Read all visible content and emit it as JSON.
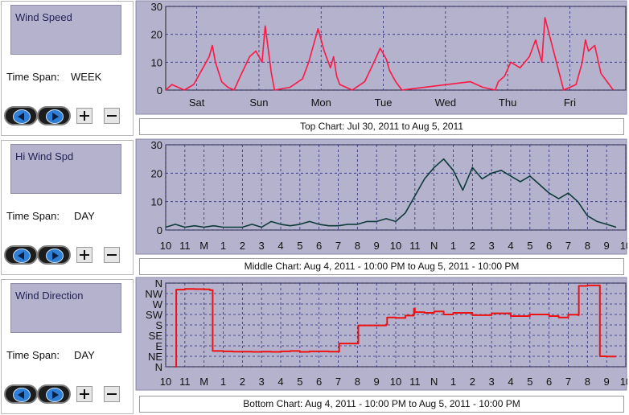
{
  "panels": [
    {
      "selector_label": "Wind Speed",
      "time_span_label": "Time Span:",
      "time_span_value": "WEEK"
    },
    {
      "selector_label": "Hi Wind Spd",
      "time_span_label": "Time Span:",
      "time_span_value": "DAY"
    },
    {
      "selector_label": "Wind Direction",
      "time_span_label": "Time Span:",
      "time_span_value": "DAY"
    }
  ],
  "captions": {
    "top": "Top Chart:  Jul 30, 2011  to  Aug 5, 2011",
    "middle": "Middle Chart:  Aug 4, 2011 - 10:00 PM  to  Aug 5, 2011 - 10:00 PM",
    "bottom": "Bottom Chart:  Aug 4, 2011 - 10:00 PM  to  Aug 5, 2011 - 10:00 PM"
  },
  "colors": {
    "plot_bg": "#b4b2cc",
    "grid": "#2c2c7a",
    "top_series": "#ff1744",
    "middle_series": "#0d3b3b",
    "bottom_series": "#ee1111"
  },
  "icons": {
    "back": "left-arrow-icon",
    "forward": "right-arrow-icon",
    "zoom_in": "plus-icon",
    "zoom_out": "minus-icon"
  },
  "chart_data": [
    {
      "type": "line",
      "ylim": [
        0,
        30
      ],
      "yticks": [
        0,
        10,
        20,
        30
      ],
      "xlim": [
        0,
        7.4
      ],
      "xtick_labels": [
        "Sat",
        "Sun",
        "Mon",
        "Tue",
        "Wed",
        "Thu",
        "Fri"
      ],
      "xtick_positions": [
        0.5,
        1.5,
        2.5,
        3.5,
        4.5,
        5.5,
        6.5
      ],
      "grid": true,
      "series": [
        {
          "x": [
            0,
            0.1,
            0.3,
            0.45,
            0.6,
            0.7,
            0.75,
            0.8,
            0.9,
            1.0,
            1.1,
            1.2,
            1.35,
            1.45,
            1.55,
            1.6,
            1.7,
            1.75,
            2.0,
            2.2,
            2.3,
            2.45,
            2.55,
            2.65,
            2.7,
            2.75,
            2.8,
            2.9,
            3.0,
            3.2,
            3.35,
            3.45,
            3.55,
            3.6,
            3.7,
            3.8,
            4.9,
            5.1,
            5.3,
            5.35,
            5.45,
            5.55,
            5.7,
            5.85,
            5.95,
            6.05,
            6.1,
            6.4,
            6.6,
            6.7,
            6.75,
            6.8,
            6.9,
            7.0,
            7.1,
            7.2
          ],
          "y": [
            0,
            2,
            0,
            2,
            8,
            12,
            16,
            10,
            3,
            1,
            0,
            5,
            12,
            14,
            10,
            23,
            6,
            0,
            1,
            4,
            10,
            22,
            14,
            8,
            12,
            5,
            2,
            1,
            0,
            3,
            10,
            15,
            11,
            7,
            3,
            0,
            3,
            1,
            0,
            3,
            5,
            10,
            8,
            12,
            18,
            10,
            26,
            0,
            2,
            10,
            18,
            14,
            16,
            6,
            3,
            0
          ]
        }
      ]
    },
    {
      "type": "line",
      "ylim": [
        0,
        30
      ],
      "yticks": [
        0,
        10,
        20,
        30
      ],
      "xlim": [
        0,
        24
      ],
      "xtick_labels": [
        "10",
        "11",
        "M",
        "1",
        "2",
        "3",
        "4",
        "5",
        "6",
        "7",
        "8",
        "9",
        "10",
        "11",
        "N",
        "1",
        "2",
        "3",
        "4",
        "5",
        "6",
        "7",
        "8",
        "9",
        "10"
      ],
      "xtick_positions": [
        0,
        1,
        2,
        3,
        4,
        5,
        6,
        7,
        8,
        9,
        10,
        11,
        12,
        13,
        14,
        15,
        16,
        17,
        18,
        19,
        20,
        21,
        22,
        23,
        24
      ],
      "grid": true,
      "series": [
        {
          "x": [
            0,
            0.5,
            1,
            1.5,
            2,
            2.5,
            3,
            3.5,
            4,
            4.5,
            5,
            5.5,
            6,
            6.5,
            7,
            7.5,
            8,
            8.5,
            9,
            9.5,
            10,
            10.5,
            11,
            11.5,
            12,
            12.5,
            13,
            13.5,
            14,
            14.5,
            15,
            15.5,
            16,
            16.5,
            17,
            17.5,
            18,
            18.5,
            19,
            19.5,
            20,
            20.5,
            21,
            21.5,
            22,
            22.5,
            23,
            23.5
          ],
          "y": [
            1,
            2,
            1,
            1.5,
            1,
            1.5,
            1,
            1,
            1,
            2,
            1,
            3,
            2,
            1.5,
            2,
            3,
            2,
            1.5,
            1.5,
            2,
            2,
            3,
            3,
            4,
            3,
            6,
            12,
            18,
            22,
            25,
            21,
            14,
            22,
            18,
            20,
            21,
            19,
            17,
            19,
            16,
            13,
            11,
            13,
            10,
            5,
            3,
            2,
            1
          ]
        }
      ]
    },
    {
      "type": "line",
      "ylim": [
        0,
        360
      ],
      "yticks": [
        0,
        45,
        90,
        135,
        180,
        225,
        270,
        315,
        360
      ],
      "ytick_labels": [
        "N",
        "NE",
        "E",
        "SE",
        "S",
        "SW",
        "W",
        "NW",
        "N"
      ],
      "xlim": [
        0,
        24
      ],
      "xtick_labels": [
        "10",
        "11",
        "M",
        "1",
        "2",
        "3",
        "4",
        "5",
        "6",
        "7",
        "8",
        "9",
        "10",
        "11",
        "N",
        "1",
        "2",
        "3",
        "4",
        "5",
        "6",
        "7",
        "8",
        "9",
        "10"
      ],
      "xtick_positions": [
        0,
        1,
        2,
        3,
        4,
        5,
        6,
        7,
        8,
        9,
        10,
        11,
        12,
        13,
        14,
        15,
        16,
        17,
        18,
        19,
        20,
        21,
        22,
        23,
        24
      ],
      "grid": true,
      "series": [
        {
          "x": [
            0.5,
            0.55,
            1,
            1.5,
            2,
            2.3,
            2.45,
            3,
            3.5,
            4,
            4.5,
            5,
            5.5,
            6,
            6.5,
            7,
            7.5,
            8,
            8.5,
            9,
            9.05,
            9.5,
            10,
            10.05,
            11,
            11.5,
            11.55,
            12,
            12.5,
            12.95,
            13.0,
            13.5,
            14,
            14.5,
            15,
            16,
            17,
            18,
            19,
            20,
            20.5,
            21,
            21.5,
            21.55,
            22,
            22.6,
            22.65,
            23,
            23.5
          ],
          "y": [
            0,
            332,
            335,
            334,
            333,
            330,
            68,
            66,
            65,
            65,
            64,
            65,
            64,
            66,
            68,
            64,
            66,
            66,
            65,
            65,
            100,
            100,
            100,
            178,
            178,
            182,
            212,
            210,
            220,
            250,
            235,
            232,
            238,
            225,
            232,
            222,
            230,
            218,
            225,
            218,
            212,
            224,
            222,
            348,
            350,
            350,
            45,
            44,
            44
          ]
        }
      ]
    }
  ]
}
